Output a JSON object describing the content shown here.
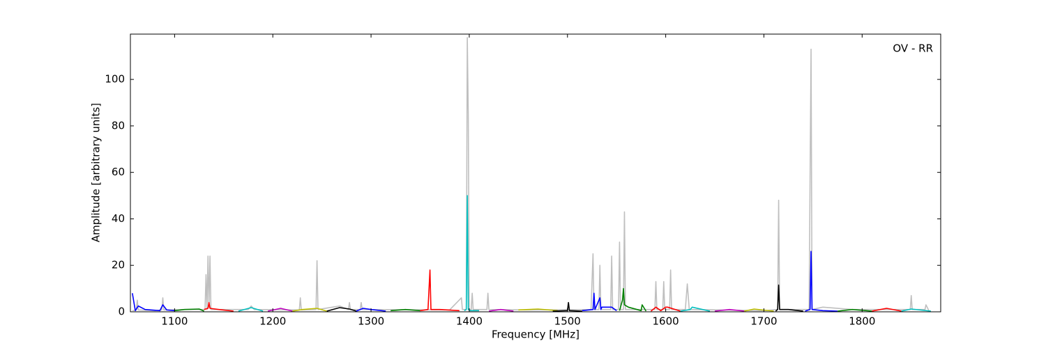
{
  "chart_data": {
    "type": "line",
    "annotation": "OV - RR",
    "xlabel": "Frequency [MHz]",
    "ylabel": "Amplitude [arbitrary units]",
    "xlim": [
      1055,
      1880
    ],
    "ylim": [
      0,
      119.5
    ],
    "xticks": [
      1100,
      1200,
      1300,
      1400,
      1500,
      1600,
      1700,
      1800
    ],
    "yticks": [
      0,
      20,
      40,
      60,
      80,
      100
    ],
    "series": [
      {
        "color": "#bfbfbf",
        "x": [
          1057,
          1061,
          1062,
          1063,
          1080,
          1087,
          1088,
          1089,
          1110,
          1131,
          1132,
          1133,
          1134,
          1135,
          1136,
          1137,
          1150,
          1175,
          1178,
          1181,
          1227,
          1228,
          1229,
          1244,
          1245,
          1246,
          1268,
          1277,
          1278,
          1279,
          1289,
          1290,
          1291,
          1380,
          1392,
          1393,
          1397,
          1398,
          1399,
          1400,
          1402,
          1403,
          1404,
          1418,
          1419,
          1420,
          1460,
          1524,
          1526,
          1527,
          1532,
          1533,
          1534,
          1544,
          1545,
          1546,
          1552,
          1553,
          1554,
          1557,
          1558,
          1559,
          1589,
          1590,
          1591,
          1597,
          1598,
          1599,
          1604,
          1605,
          1606,
          1620,
          1622,
          1624,
          1700,
          1714,
          1715,
          1716,
          1746,
          1748,
          1749,
          1760,
          1790,
          1849,
          1850,
          1851,
          1864,
          1865,
          1868
        ],
        "values": [
          0.5,
          0.8,
          5,
          0.8,
          0.5,
          0.8,
          6,
          0.8,
          1,
          1,
          16,
          1,
          24,
          2,
          24,
          1,
          1,
          1,
          2.5,
          1,
          0.8,
          6,
          0.8,
          1,
          22,
          1,
          2.5,
          1,
          4,
          1,
          1,
          4,
          1,
          0.8,
          6,
          1,
          1,
          118,
          85,
          1,
          1,
          8,
          1,
          1,
          8,
          1,
          0.8,
          1,
          25,
          1,
          1,
          20,
          1,
          1,
          24,
          1,
          1,
          30,
          1,
          1,
          43,
          1,
          1,
          13,
          1,
          1,
          13,
          1,
          1,
          18,
          1,
          1,
          12,
          1,
          0.5,
          1,
          48,
          1,
          1,
          113,
          1,
          2,
          1,
          1,
          7,
          1,
          1,
          3,
          0.5
        ]
      },
      {
        "color": "#0000ff",
        "x": [
          1057,
          1060,
          1063,
          1070,
          1085,
          1088,
          1092,
          1100
        ],
        "values": [
          8,
          0.5,
          2.5,
          1,
          0.5,
          3,
          0.8,
          0.5
        ]
      },
      {
        "color": "#008000",
        "x": [
          1100,
          1110,
          1125,
          1130
        ],
        "values": [
          0.5,
          1,
          1.2,
          0.3
        ]
      },
      {
        "color": "#ff0000",
        "x": [
          1130,
          1134,
          1135,
          1136,
          1145,
          1160
        ],
        "values": [
          1,
          1.5,
          4,
          1.5,
          1,
          0.3
        ]
      },
      {
        "color": "#00bfbf",
        "x": [
          1165,
          1178,
          1190
        ],
        "values": [
          0.3,
          1.8,
          0.3
        ]
      },
      {
        "color": "#bf00bf",
        "x": [
          1195,
          1208,
          1220
        ],
        "values": [
          0.3,
          1.5,
          0.3
        ]
      },
      {
        "color": "#bfbf00",
        "x": [
          1220,
          1230,
          1245,
          1255
        ],
        "values": [
          0.3,
          1,
          1.5,
          0.3
        ]
      },
      {
        "color": "#000000",
        "x": [
          1255,
          1268,
          1278,
          1285
        ],
        "values": [
          0.3,
          1.8,
          1.2,
          0.3
        ]
      },
      {
        "color": "#0000ff",
        "x": [
          1285,
          1292,
          1300,
          1315
        ],
        "values": [
          0.3,
          1.5,
          1,
          0.3
        ]
      },
      {
        "color": "#008000",
        "x": [
          1320,
          1335,
          1350
        ],
        "values": [
          0.5,
          1,
          0.5
        ]
      },
      {
        "color": "#ff0000",
        "x": [
          1350,
          1358,
          1360,
          1361,
          1370,
          1390
        ],
        "values": [
          0.5,
          1,
          18,
          1,
          1,
          0.5
        ]
      },
      {
        "color": "#00bfbf",
        "x": [
          1395,
          1397,
          1398,
          1399,
          1401,
          1410
        ],
        "values": [
          0.5,
          1,
          50,
          1,
          0.5,
          0.5
        ]
      },
      {
        "color": "#bf00bf",
        "x": [
          1420,
          1432,
          1445
        ],
        "values": [
          0.3,
          1,
          0.3
        ]
      },
      {
        "color": "#bfbf00",
        "x": [
          1450,
          1470,
          1490
        ],
        "values": [
          0.8,
          1.2,
          0.5
        ]
      },
      {
        "color": "#000000",
        "x": [
          1485,
          1500,
          1501,
          1502,
          1515
        ],
        "values": [
          0.3,
          0.5,
          4,
          0.5,
          0.3
        ]
      },
      {
        "color": "#0000ff",
        "x": [
          1515,
          1526,
          1527,
          1528,
          1533,
          1534,
          1535,
          1545,
          1550
        ],
        "values": [
          0.5,
          1,
          8,
          1,
          6,
          1,
          2,
          2,
          0.5
        ]
      },
      {
        "color": "#008000",
        "x": [
          1553,
          1556,
          1557,
          1558,
          1562,
          1575,
          1576,
          1580
        ],
        "values": [
          0.5,
          5,
          10,
          3,
          2,
          0.5,
          3,
          0.3
        ]
      },
      {
        "color": "#ff0000",
        "x": [
          1585,
          1590,
          1595,
          1600,
          1602,
          1615
        ],
        "values": [
          0.3,
          2,
          0.5,
          2,
          2,
          0.3
        ]
      },
      {
        "color": "#00bfbf",
        "x": [
          1615,
          1625,
          1627,
          1645
        ],
        "values": [
          0.3,
          1,
          2,
          0.3
        ]
      },
      {
        "color": "#bf00bf",
        "x": [
          1650,
          1665,
          1680
        ],
        "values": [
          0.3,
          1,
          0.3
        ]
      },
      {
        "color": "#bfbf00",
        "x": [
          1680,
          1690,
          1710
        ],
        "values": [
          0.3,
          1.2,
          0.3
        ]
      },
      {
        "color": "#000000",
        "x": [
          1712,
          1714,
          1715,
          1716,
          1725,
          1740
        ],
        "values": [
          0.3,
          1,
          11.5,
          1,
          1,
          0.3
        ]
      },
      {
        "color": "#0000ff",
        "x": [
          1742,
          1747,
          1748,
          1749,
          1760,
          1775
        ],
        "values": [
          0.3,
          1,
          26,
          1,
          0.5,
          0.3
        ]
      },
      {
        "color": "#008000",
        "x": [
          1775,
          1790,
          1810
        ],
        "values": [
          0.3,
          1,
          0.3
        ]
      },
      {
        "color": "#ff0000",
        "x": [
          1810,
          1825,
          1840
        ],
        "values": [
          0.3,
          1.5,
          0.3
        ]
      },
      {
        "color": "#00bfbf",
        "x": [
          1840,
          1850,
          1870
        ],
        "values": [
          0.3,
          1.2,
          0.3
        ]
      }
    ]
  }
}
